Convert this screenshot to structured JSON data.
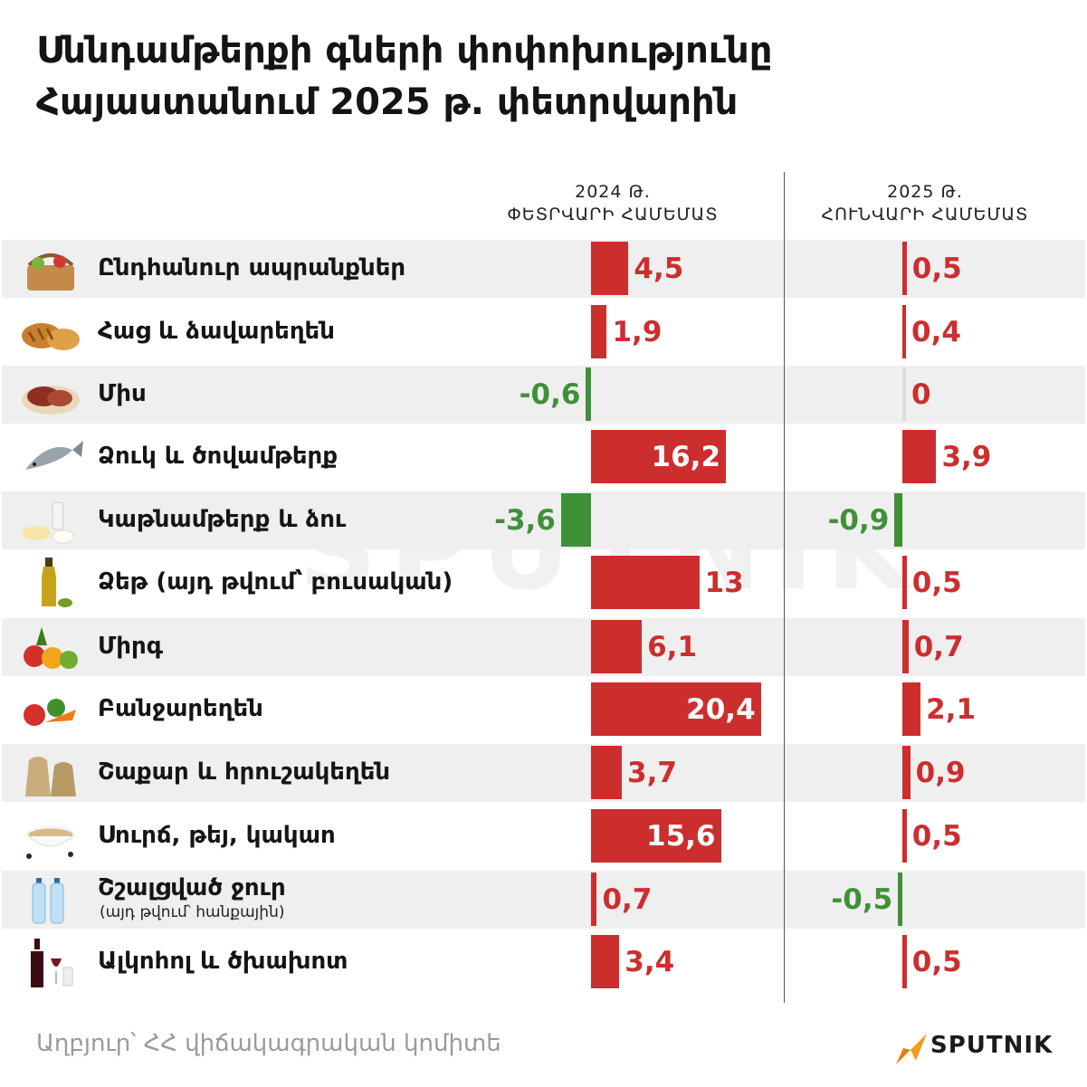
{
  "title": {
    "line1": "Սննդամթերքի գների փոփոխությունը",
    "line2": "Հայաստանում 2025 թ. փետրվարին"
  },
  "columns": {
    "col1_line1": "2024 Թ.",
    "col1_line2": "ՓԵՏՐՎԱՐԻ ՀԱՄԵՄԱՏ",
    "col2_line1": "2025 Թ.",
    "col2_line2": "ՀՈՒՆՎԱՐԻ ՀԱՄԵՄԱՏ"
  },
  "footer": {
    "source": "Աղբյուր՝ ՀՀ վիճակագրական կոմիտե",
    "brand": "SPUTNIK"
  },
  "watermark": "SPUTNIK",
  "colors": {
    "positive": "#cc2e2e",
    "negative": "#3e9137",
    "row_bg": "#efefef"
  },
  "chart_data": {
    "type": "bar",
    "orientation": "horizontal",
    "title": "Սննդամթերքի գների փոփոխությունը Հայաստանում 2025 թ. փետրվարին",
    "categories": [
      "Ընդհանուր ապրանքներ",
      "Հաց և ձավարեղեն",
      "Միս",
      "Ձուկ և ծովամթերք",
      "Կաթնամթերք և ձու",
      "Ձեթ (այդ թվում՝ բուսական)",
      "Միրգ",
      "Բանջարեղեն",
      "Շաքար և հրուշակեղեն",
      "Սուրճ, թեյ, կակաո",
      "Շշալցված ջուր",
      "Ալկոհոլ և ծխախոտ"
    ],
    "sublabels": [
      "",
      "",
      "",
      "",
      "",
      "",
      "",
      "",
      "",
      "",
      "(այդ թվում՝ հանքային)",
      ""
    ],
    "icons": [
      "basket-icon",
      "bread-icon",
      "meat-icon",
      "fish-icon",
      "dairy-icon",
      "oil-icon",
      "fruit-icon",
      "vegetables-icon",
      "sugar-sack-icon",
      "coffee-icon",
      "water-bottle-icon",
      "wine-icon"
    ],
    "series": [
      {
        "name": "2024 Թ. ՓԵՏՐՎԱՐԻ ՀԱՄԵՄԱՏ",
        "values": [
          4.5,
          1.9,
          -0.6,
          16.2,
          -3.6,
          13,
          6.1,
          20.4,
          3.7,
          15.6,
          0.7,
          3.4
        ],
        "labels": [
          "4,5",
          "1,9",
          "-0,6",
          "16,2",
          "-3,6",
          "13",
          "6,1",
          "20,4",
          "3,7",
          "15,6",
          "0,7",
          "3,4"
        ]
      },
      {
        "name": "2025 Թ. ՀՈՒՆՎԱՐԻ ՀԱՄԵՄԱՏ",
        "values": [
          0.5,
          0.4,
          0,
          3.9,
          -0.9,
          0.5,
          0.7,
          2.1,
          0.9,
          0.5,
          -0.5,
          0.5
        ],
        "labels": [
          "0,5",
          "0,4",
          "0",
          "3,9",
          "-0,9",
          "0,5",
          "0,7",
          "2,1",
          "0,9",
          "0,5",
          "-0,5",
          "0,5"
        ]
      }
    ],
    "units": "%"
  }
}
